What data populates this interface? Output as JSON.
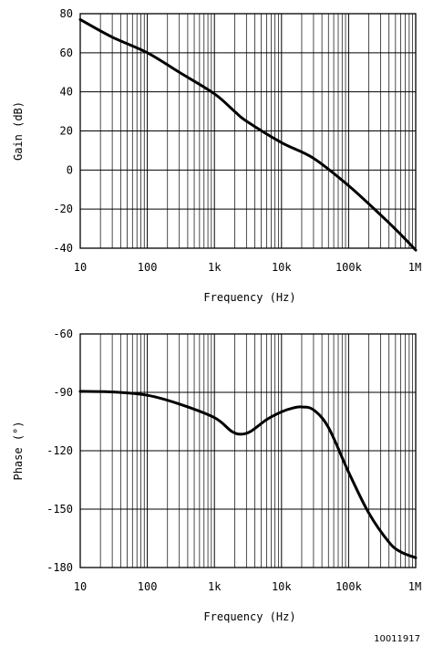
{
  "chart_data": [
    {
      "type": "line",
      "title": "",
      "xlabel": "Frequency (Hz)",
      "ylabel": "Gain (dB)",
      "x_scale": "log",
      "xlim": [
        10,
        1000000
      ],
      "ylim": [
        -40,
        80
      ],
      "x_ticks": [
        10,
        100,
        1000,
        10000,
        100000,
        1000000
      ],
      "x_tick_labels": [
        "10",
        "100",
        "1k",
        "10k",
        "100k",
        "1M"
      ],
      "y_ticks": [
        -40,
        -20,
        0,
        20,
        40,
        60,
        80
      ],
      "y_tick_labels": [
        "-40",
        "-20",
        "0",
        "20",
        "40",
        "60",
        "80"
      ],
      "grid": true,
      "series": [
        {
          "x": [
            10,
            30,
            100,
            300,
            1000,
            2000,
            3000,
            10000,
            30000,
            100000,
            300000,
            600000,
            1000000
          ],
          "y": [
            77,
            68,
            60,
            50,
            39,
            30,
            25,
            14,
            6,
            -8,
            -23,
            -33,
            -41
          ]
        }
      ]
    },
    {
      "type": "line",
      "title": "",
      "xlabel": "Frequency (Hz)",
      "ylabel": "Phase (°)",
      "x_scale": "log",
      "xlim": [
        10,
        1000000
      ],
      "ylim": [
        -180,
        -60
      ],
      "x_ticks": [
        10,
        100,
        1000,
        10000,
        100000,
        1000000
      ],
      "x_tick_labels": [
        "10",
        "100",
        "1k",
        "10k",
        "100k",
        "1M"
      ],
      "y_ticks": [
        -180,
        -150,
        -120,
        -90,
        -60
      ],
      "y_tick_labels": [
        "-180",
        "-150",
        "-120",
        "-90",
        "-60"
      ],
      "grid": true,
      "series": [
        {
          "x": [
            10,
            30,
            100,
            300,
            1000,
            1800,
            2500,
            3500,
            6000,
            10000,
            15000,
            20000,
            30000,
            50000,
            100000,
            200000,
            400000,
            600000,
            1000000
          ],
          "y": [
            -89.5,
            -89.8,
            -91.5,
            -96,
            -103,
            -110,
            -111.5,
            -110,
            -104,
            -100,
            -98,
            -97.5,
            -99,
            -108,
            -131,
            -152,
            -167,
            -172,
            -175
          ]
        }
      ]
    }
  ],
  "figure_id": "10011917"
}
